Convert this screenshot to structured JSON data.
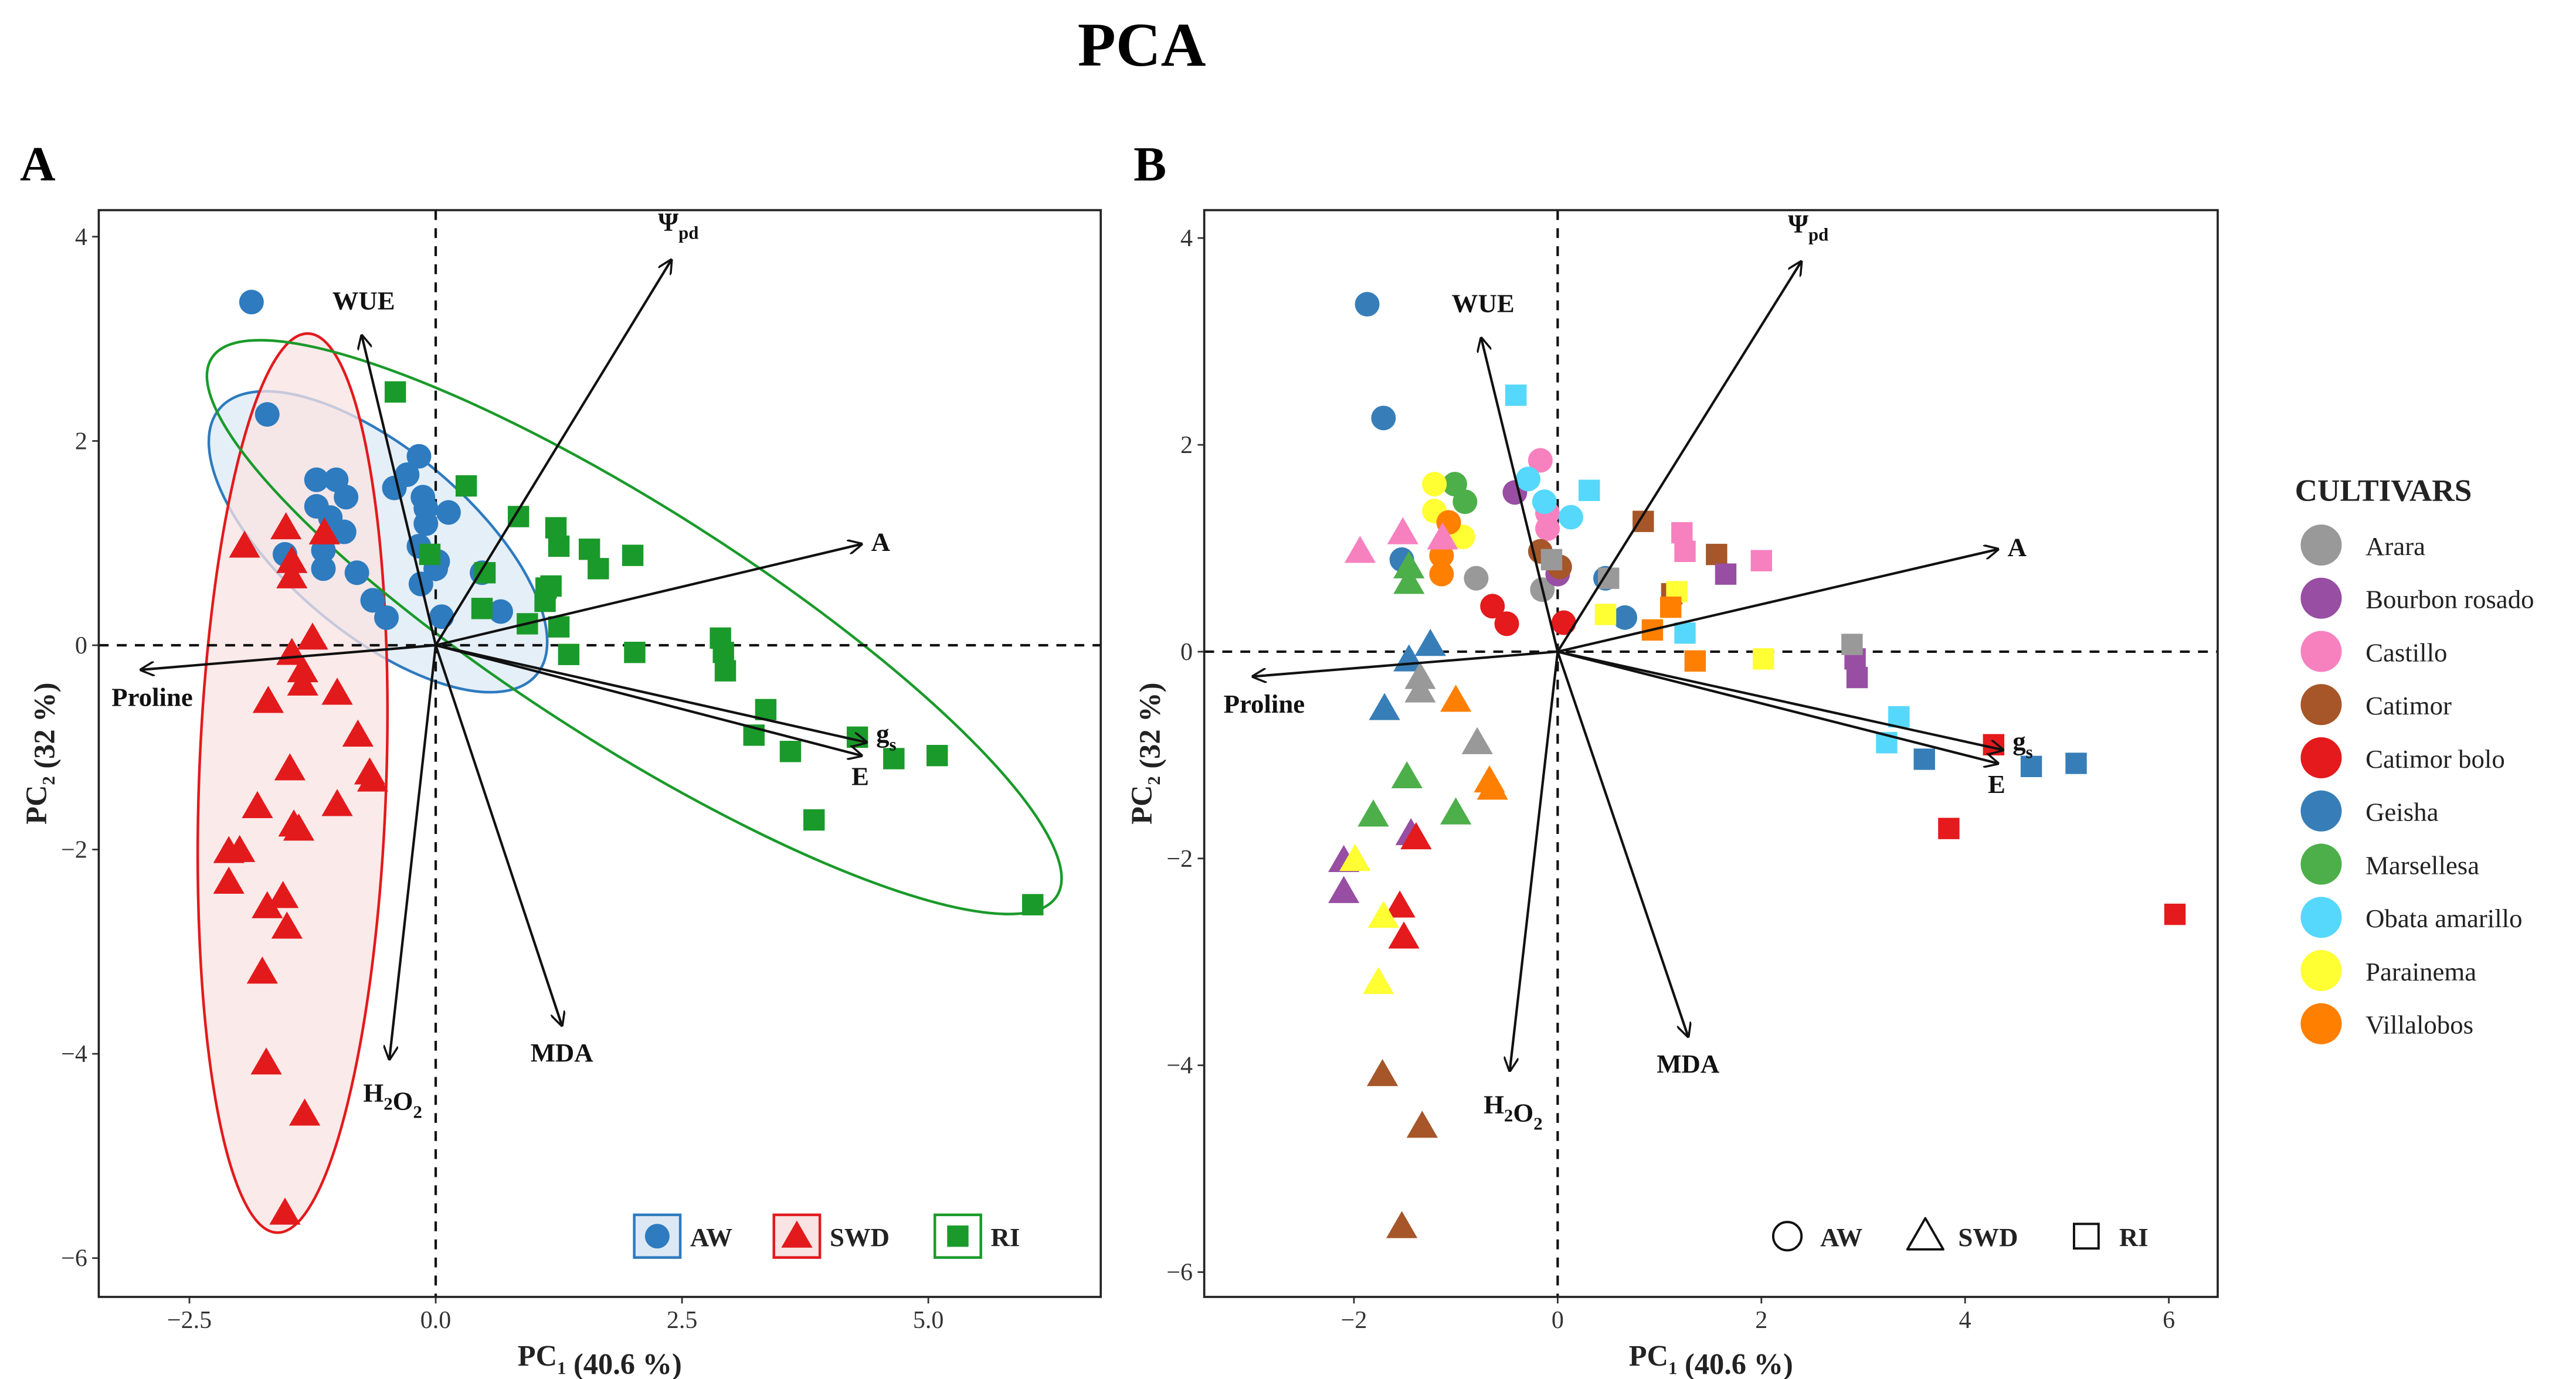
{
  "title": "PCA",
  "panels": [
    {
      "label": "A",
      "color_by": "treatment",
      "xlim": [
        -3.42,
        6.75
      ],
      "ylim": [
        -6.38,
        4.26
      ],
      "xticks": [
        -2.5,
        0.0,
        2.5,
        5.0
      ],
      "xtick_labels": [
        "−2.5",
        "0.0",
        "2.5",
        "5.0"
      ],
      "yticks": [
        -6,
        -4,
        -2,
        0,
        2,
        4
      ],
      "ytick_labels": [
        "−6",
        "−4",
        "−2",
        "0",
        "2",
        "4"
      ]
    },
    {
      "label": "B",
      "color_by": "cultivar",
      "xlim": [
        -3.47,
        6.48
      ],
      "ylim": [
        -6.24,
        4.27
      ],
      "xticks": [
        -2,
        0,
        2,
        4,
        6
      ],
      "xtick_labels": [
        "−2",
        "0",
        "2",
        "4",
        "6"
      ],
      "yticks": [
        -6,
        -4,
        -2,
        0,
        2,
        4
      ],
      "ytick_labels": [
        "−6",
        "−4",
        "−2",
        "0",
        "2",
        "4"
      ]
    }
  ],
  "chart_data": {
    "type": "scatter",
    "title": "PCA",
    "xlabel": {
      "main": "PC",
      "sub": "1",
      "rest": " (40.6 %)"
    },
    "ylabel": {
      "main": "PC",
      "sub": "2",
      "rest": " (32 %)"
    },
    "treatments": [
      {
        "name": "AW",
        "shape": "circle",
        "color": "#2e7bbf",
        "fill": "#dce9f5"
      },
      {
        "name": "SWD",
        "shape": "triangle",
        "color": "#e31a1c",
        "fill": "#f9e3e3"
      },
      {
        "name": "RI",
        "shape": "square",
        "color": "#1a9a2a",
        "fill": "none"
      }
    ],
    "legend_title": "CULTIVARS",
    "cultivars": [
      {
        "name": "Arara",
        "color": "#999999"
      },
      {
        "name": "Bourbon rosado",
        "color": "#984ea3"
      },
      {
        "name": "Castillo",
        "color": "#f781bf"
      },
      {
        "name": "Catimor",
        "color": "#a65628"
      },
      {
        "name": "Catimor bolo",
        "color": "#e41a1c"
      },
      {
        "name": "Geisha",
        "color": "#377eb8"
      },
      {
        "name": "Marsellesa",
        "color": "#4daf4a"
      },
      {
        "name": "Obata amarillo",
        "color": "#55d8fb"
      },
      {
        "name": "Parainema",
        "color": "#ffff33"
      },
      {
        "name": "Villalobos",
        "color": "#ff7f00"
      }
    ],
    "loadings": [
      {
        "id": "psi",
        "parts": [
          {
            "t": "Ψ"
          },
          {
            "t": "pd",
            "sub": true
          }
        ],
        "pc1": 2.39,
        "pc2": 3.77
      },
      {
        "id": "wue",
        "parts": [
          {
            "t": "WUE"
          }
        ],
        "pc1": -0.75,
        "pc2": 3.03
      },
      {
        "id": "a",
        "parts": [
          {
            "t": "A"
          }
        ],
        "pc1": 4.32,
        "pc2": 0.99
      },
      {
        "id": "gs",
        "parts": [
          {
            "t": "g"
          },
          {
            "t": "s",
            "sub": true
          }
        ],
        "pc1": 4.37,
        "pc2": -0.95
      },
      {
        "id": "e",
        "parts": [
          {
            "t": "E"
          }
        ],
        "pc1": 4.32,
        "pc2": -1.08
      },
      {
        "id": "mda",
        "parts": [
          {
            "t": "MDA"
          }
        ],
        "pc1": 1.28,
        "pc2": -3.72
      },
      {
        "id": "h2o2",
        "parts": [
          {
            "t": "H"
          },
          {
            "t": "2",
            "sub": true
          },
          {
            "t": "O"
          },
          {
            "t": "2",
            "sub": true
          }
        ],
        "pc1": -0.47,
        "pc2": -4.05
      },
      {
        "id": "proline",
        "parts": [
          {
            "t": "Proline"
          }
        ],
        "pc1": -2.99,
        "pc2": -0.24
      }
    ],
    "points": [
      {
        "c": "Geisha",
        "t": "AW",
        "pc1": -1.87,
        "pc2": 3.36
      },
      {
        "c": "Geisha",
        "t": "AW",
        "pc1": -1.71,
        "pc2": 2.26
      },
      {
        "c": "Geisha",
        "t": "AW",
        "pc1": -1.53,
        "pc2": 0.89
      },
      {
        "c": "Geisha",
        "t": "AW",
        "pc1": 0.66,
        "pc2": 0.33
      },
      {
        "c": "Geisha",
        "t": "AW",
        "pc1": 0.47,
        "pc2": 0.71
      },
      {
        "c": "Marsellesa",
        "t": "AW",
        "pc1": -1.01,
        "pc2": 1.62
      },
      {
        "c": "Marsellesa",
        "t": "AW",
        "pc1": -0.91,
        "pc2": 1.45
      },
      {
        "c": "Parainema",
        "t": "AW",
        "pc1": -1.21,
        "pc2": 1.62
      },
      {
        "c": "Parainema",
        "t": "AW",
        "pc1": -1.21,
        "pc2": 1.36
      },
      {
        "c": "Parainema",
        "t": "AW",
        "pc1": -0.93,
        "pc2": 1.11
      },
      {
        "c": "Villalobos",
        "t": "AW",
        "pc1": -1.07,
        "pc2": 1.25
      },
      {
        "c": "Villalobos",
        "t": "AW",
        "pc1": -1.14,
        "pc2": 0.93
      },
      {
        "c": "Villalobos",
        "t": "AW",
        "pc1": -1.14,
        "pc2": 0.75
      },
      {
        "c": "Arara",
        "t": "AW",
        "pc1": -0.8,
        "pc2": 0.71
      },
      {
        "c": "Arara",
        "t": "AW",
        "pc1": -0.15,
        "pc2": 0.6
      },
      {
        "c": "Bourbon rosado",
        "t": "AW",
        "pc1": -0.42,
        "pc2": 1.54
      },
      {
        "c": "Bourbon rosado",
        "t": "AW",
        "pc1": 0.0,
        "pc2": 0.75
      },
      {
        "c": "Castillo",
        "t": "AW",
        "pc1": -0.17,
        "pc2": 1.85
      },
      {
        "c": "Castillo",
        "t": "AW",
        "pc1": -0.1,
        "pc2": 1.34
      },
      {
        "c": "Castillo",
        "t": "AW",
        "pc1": -0.1,
        "pc2": 1.19
      },
      {
        "c": "Obata amarillo",
        "t": "AW",
        "pc1": -0.29,
        "pc2": 1.67
      },
      {
        "c": "Obata amarillo",
        "t": "AW",
        "pc1": -0.13,
        "pc2": 1.45
      },
      {
        "c": "Obata amarillo",
        "t": "AW",
        "pc1": 0.13,
        "pc2": 1.3
      },
      {
        "c": "Catimor",
        "t": "AW",
        "pc1": -0.17,
        "pc2": 0.97
      },
      {
        "c": "Catimor",
        "t": "AW",
        "pc1": 0.02,
        "pc2": 0.82
      },
      {
        "c": "Catimor bolo",
        "t": "AW",
        "pc1": -0.64,
        "pc2": 0.44
      },
      {
        "c": "Catimor bolo",
        "t": "AW",
        "pc1": -0.5,
        "pc2": 0.27
      },
      {
        "c": "Catimor bolo",
        "t": "AW",
        "pc1": 0.06,
        "pc2": 0.28
      },
      {
        "c": "Castillo",
        "t": "SWD",
        "pc1": -1.94,
        "pc2": 0.97
      },
      {
        "c": "Castillo",
        "t": "SWD",
        "pc1": -1.52,
        "pc2": 1.15
      },
      {
        "c": "Castillo",
        "t": "SWD",
        "pc1": -1.13,
        "pc2": 1.1
      },
      {
        "c": "Marsellesa",
        "t": "SWD",
        "pc1": -1.46,
        "pc2": 0.82
      },
      {
        "c": "Marsellesa",
        "t": "SWD",
        "pc1": -1.46,
        "pc2": 0.67
      },
      {
        "c": "Marsellesa",
        "t": "SWD",
        "pc1": -1.48,
        "pc2": -1.21
      },
      {
        "c": "Marsellesa",
        "t": "SWD",
        "pc1": -1.81,
        "pc2": -1.58
      },
      {
        "c": "Marsellesa",
        "t": "SWD",
        "pc1": -1.0,
        "pc2": -1.56
      },
      {
        "c": "Geisha",
        "t": "SWD",
        "pc1": -1.25,
        "pc2": 0.07
      },
      {
        "c": "Geisha",
        "t": "SWD",
        "pc1": -1.46,
        "pc2": -0.08
      },
      {
        "c": "Geisha",
        "t": "SWD",
        "pc1": -1.7,
        "pc2": -0.55
      },
      {
        "c": "Arara",
        "t": "SWD",
        "pc1": -1.35,
        "pc2": -0.25
      },
      {
        "c": "Arara",
        "t": "SWD",
        "pc1": -1.35,
        "pc2": -0.38
      },
      {
        "c": "Arara",
        "t": "SWD",
        "pc1": -0.79,
        "pc2": -0.88
      },
      {
        "c": "Villalobos",
        "t": "SWD",
        "pc1": -1.0,
        "pc2": -0.47
      },
      {
        "c": "Villalobos",
        "t": "SWD",
        "pc1": -0.67,
        "pc2": -1.25
      },
      {
        "c": "Villalobos",
        "t": "SWD",
        "pc1": -0.64,
        "pc2": -1.32
      },
      {
        "c": "Bourbon rosado",
        "t": "SWD",
        "pc1": -1.44,
        "pc2": -1.76
      },
      {
        "c": "Bourbon rosado",
        "t": "SWD",
        "pc1": -2.1,
        "pc2": -2.02
      },
      {
        "c": "Bourbon rosado",
        "t": "SWD",
        "pc1": -2.1,
        "pc2": -2.32
      },
      {
        "c": "Catimor bolo",
        "t": "SWD",
        "pc1": -1.39,
        "pc2": -1.8
      },
      {
        "c": "Catimor bolo",
        "t": "SWD",
        "pc1": -1.55,
        "pc2": -2.46
      },
      {
        "c": "Catimor bolo",
        "t": "SWD",
        "pc1": -1.51,
        "pc2": -2.76
      },
      {
        "c": "Parainema",
        "t": "SWD",
        "pc1": -1.99,
        "pc2": -2.01
      },
      {
        "c": "Parainema",
        "t": "SWD",
        "pc1": -1.71,
        "pc2": -2.56
      },
      {
        "c": "Parainema",
        "t": "SWD",
        "pc1": -1.76,
        "pc2": -3.2
      },
      {
        "c": "Catimor",
        "t": "SWD",
        "pc1": -1.72,
        "pc2": -4.09
      },
      {
        "c": "Catimor",
        "t": "SWD",
        "pc1": -1.33,
        "pc2": -4.59
      },
      {
        "c": "Catimor",
        "t": "SWD",
        "pc1": -1.53,
        "pc2": -5.56
      },
      {
        "c": "Obata amarillo",
        "t": "RI",
        "pc1": -0.41,
        "pc2": 2.48
      },
      {
        "c": "Obata amarillo",
        "t": "RI",
        "pc1": 0.31,
        "pc2": 1.56
      },
      {
        "c": "Obata amarillo",
        "t": "RI",
        "pc1": 1.25,
        "pc2": 0.18
      },
      {
        "c": "Obata amarillo",
        "t": "RI",
        "pc1": 3.35,
        "pc2": -0.63
      },
      {
        "c": "Obata amarillo",
        "t": "RI",
        "pc1": 3.23,
        "pc2": -0.88
      },
      {
        "c": "Catimor",
        "t": "RI",
        "pc1": 0.84,
        "pc2": 1.26
      },
      {
        "c": "Catimor",
        "t": "RI",
        "pc1": 1.56,
        "pc2": 0.94
      },
      {
        "c": "Catimor",
        "t": "RI",
        "pc1": 1.12,
        "pc2": 0.56
      },
      {
        "c": "Castillo",
        "t": "RI",
        "pc1": 1.22,
        "pc2": 1.15
      },
      {
        "c": "Castillo",
        "t": "RI",
        "pc1": 1.25,
        "pc2": 0.97
      },
      {
        "c": "Castillo",
        "t": "RI",
        "pc1": 2.0,
        "pc2": 0.88
      },
      {
        "c": "Bourbon rosado",
        "t": "RI",
        "pc1": 1.65,
        "pc2": 0.75
      },
      {
        "c": "Bourbon rosado",
        "t": "RI",
        "pc1": 2.92,
        "pc2": -0.07
      },
      {
        "c": "Bourbon rosado",
        "t": "RI",
        "pc1": 2.94,
        "pc2": -0.25
      },
      {
        "c": "Arara",
        "t": "RI",
        "pc1": -0.06,
        "pc2": 0.89
      },
      {
        "c": "Arara",
        "t": "RI",
        "pc1": 0.5,
        "pc2": 0.71
      },
      {
        "c": "Arara",
        "t": "RI",
        "pc1": 2.89,
        "pc2": 0.07
      },
      {
        "c": "Parainema",
        "t": "RI",
        "pc1": 0.47,
        "pc2": 0.36
      },
      {
        "c": "Parainema",
        "t": "RI",
        "pc1": 1.17,
        "pc2": 0.58
      },
      {
        "c": "Parainema",
        "t": "RI",
        "pc1": 2.02,
        "pc2": -0.07
      },
      {
        "c": "Villalobos",
        "t": "RI",
        "pc1": 0.93,
        "pc2": 0.21
      },
      {
        "c": "Villalobos",
        "t": "RI",
        "pc1": 1.11,
        "pc2": 0.43
      },
      {
        "c": "Villalobos",
        "t": "RI",
        "pc1": 1.35,
        "pc2": -0.09
      },
      {
        "c": "Catimor bolo",
        "t": "RI",
        "pc1": 4.28,
        "pc2": -0.9
      },
      {
        "c": "Catimor bolo",
        "t": "RI",
        "pc1": 3.84,
        "pc2": -1.71
      },
      {
        "c": "Catimor bolo",
        "t": "RI",
        "pc1": 6.06,
        "pc2": -2.54
      },
      {
        "c": "Geisha",
        "t": "RI",
        "pc1": 3.6,
        "pc2": -1.04
      },
      {
        "c": "Geisha",
        "t": "RI",
        "pc1": 4.65,
        "pc2": -1.11
      },
      {
        "c": "Geisha",
        "t": "RI",
        "pc1": 5.09,
        "pc2": -1.08
      }
    ]
  }
}
